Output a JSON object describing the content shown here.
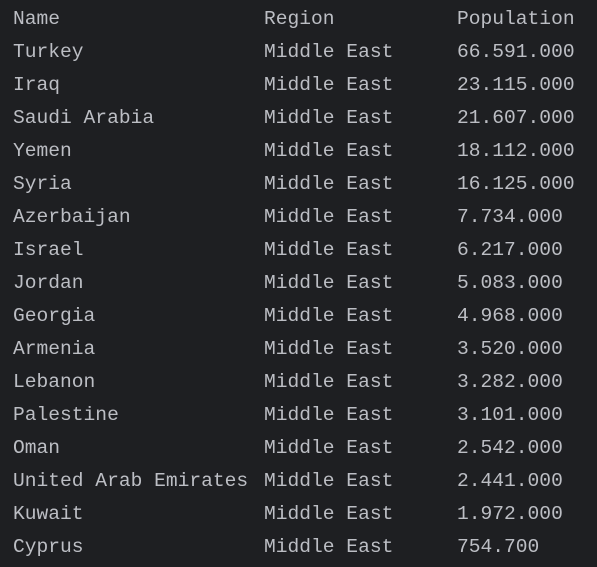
{
  "table": {
    "header": [
      "Name",
      "Region",
      "Population"
    ],
    "rows": [
      [
        "Turkey",
        "Middle East",
        "66.591.000"
      ],
      [
        "Iraq",
        "Middle East",
        "23.115.000"
      ],
      [
        "Saudi Arabia",
        "Middle East",
        "21.607.000"
      ],
      [
        "Yemen",
        "Middle East",
        "18.112.000"
      ],
      [
        "Syria",
        "Middle East",
        "16.125.000"
      ],
      [
        "Azerbaijan",
        "Middle East",
        "7.734.000"
      ],
      [
        "Israel",
        "Middle East",
        "6.217.000"
      ],
      [
        "Jordan",
        "Middle East",
        "5.083.000"
      ],
      [
        "Georgia",
        "Middle East",
        "4.968.000"
      ],
      [
        "Armenia",
        "Middle East",
        "3.520.000"
      ],
      [
        "Lebanon",
        "Middle East",
        "3.282.000"
      ],
      [
        "Palestine",
        "Middle East",
        "3.101.000"
      ],
      [
        "Oman",
        "Middle East",
        "2.542.000"
      ],
      [
        "United Arab Emirates",
        "Middle East",
        "2.441.000"
      ],
      [
        "Kuwait",
        "Middle East",
        "1.972.000"
      ],
      [
        "Cyprus",
        "Middle East",
        "754.700"
      ]
    ]
  }
}
